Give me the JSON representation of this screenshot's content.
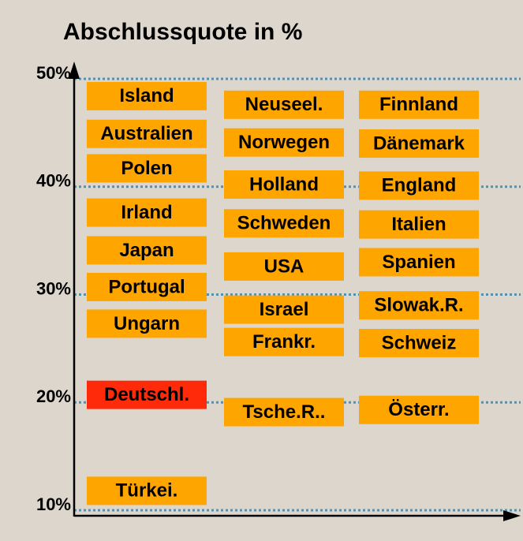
{
  "chart_data": {
    "type": "scatter",
    "title": "Abschlussquote in %",
    "ylim": [
      10,
      50
    ],
    "yticks": [
      {
        "value": 10,
        "label": "10%"
      },
      {
        "value": 20,
        "label": "20%"
      },
      {
        "value": 30,
        "label": "30%"
      },
      {
        "value": 40,
        "label": "40%"
      },
      {
        "value": 50,
        "label": "50%"
      }
    ],
    "grid": true,
    "series": [
      {
        "labels": [
          "Island",
          "Australien",
          "Polen",
          "Irland",
          "Japan",
          "Portugal",
          "Ungarn",
          "Deutschl.",
          "Türkei."
        ],
        "values": [
          48.4,
          44.9,
          41.7,
          37.6,
          34.1,
          30.7,
          27.3,
          20.7,
          11.8
        ],
        "colors": [
          "#ffa500",
          "#ffa500",
          "#ffa500",
          "#ffa500",
          "#ffa500",
          "#ffa500",
          "#ffa500",
          "#ff2a0a",
          "#ffa500"
        ]
      },
      {
        "labels": [
          "Neuseel.",
          "Norwegen",
          "Holland",
          "Schweden",
          "USA",
          "Israel",
          "Frankr.",
          "Tsche.R.."
        ],
        "values": [
          47.6,
          44.1,
          40.2,
          36.6,
          32.6,
          28.6,
          25.6,
          19.1
        ],
        "colors": [
          "#ffa500",
          "#ffa500",
          "#ffa500",
          "#ffa500",
          "#ffa500",
          "#ffa500",
          "#ffa500",
          "#ffa500"
        ]
      },
      {
        "labels": [
          "Finnland",
          "Dänemark",
          "England",
          "Italien",
          "Spanien",
          "Slowak.R.",
          "Schweiz",
          "Österr."
        ],
        "values": [
          47.6,
          44.0,
          40.1,
          36.5,
          33.0,
          29.0,
          25.5,
          19.3
        ],
        "colors": [
          "#ffa500",
          "#ffa500",
          "#ffa500",
          "#ffa500",
          "#ffa500",
          "#ffa500",
          "#ffa500",
          "#ffa500"
        ]
      }
    ]
  }
}
